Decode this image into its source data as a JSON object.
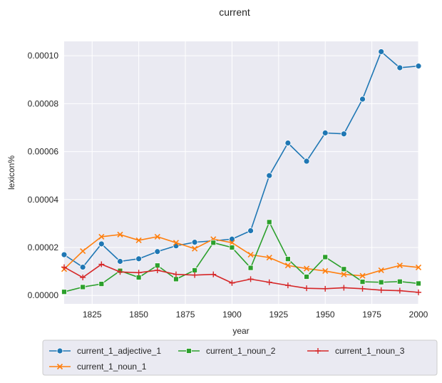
{
  "chart_data": {
    "type": "line",
    "title": "current",
    "xlabel": "year",
    "ylabel": "lexicon%",
    "xlim": [
      1810,
      2000
    ],
    "ylim": [
      -3.5e-06,
      0.000106
    ],
    "x_ticks": [
      1825,
      1850,
      1875,
      1900,
      1925,
      1950,
      1975,
      2000
    ],
    "y_ticks": [
      0.0,
      2e-05,
      4e-05,
      6e-05,
      8e-05,
      0.0001
    ],
    "y_tick_labels": [
      "0.00000",
      "0.00002",
      "0.00004",
      "0.00006",
      "0.00008",
      "0.00010"
    ],
    "grid": true,
    "legend_placement": "below plot, 3 columns",
    "x": [
      1810,
      1820,
      1830,
      1840,
      1850,
      1860,
      1870,
      1880,
      1890,
      1900,
      1910,
      1920,
      1930,
      1940,
      1950,
      1960,
      1970,
      1980,
      1990,
      2000
    ],
    "series": [
      {
        "name": "current_1_adjective_1",
        "color": "#1f77b4",
        "marker": "circle",
        "values": [
          1.7e-05,
          1.18e-05,
          2.15e-05,
          1.42e-05,
          1.53e-05,
          1.83e-05,
          2.07e-05,
          2.22e-05,
          2.28e-05,
          2.35e-05,
          2.7e-05,
          5e-05,
          6.36e-05,
          5.6e-05,
          6.78e-05,
          6.74e-05,
          8.19e-05,
          0.0001017,
          9.5e-05,
          9.57e-05
        ]
      },
      {
        "name": "current_1_noun_1",
        "color": "#ff7f0e",
        "marker": "x",
        "values": [
          1.1e-05,
          1.85e-05,
          2.45e-05,
          2.54e-05,
          2.3e-05,
          2.45e-05,
          2.2e-05,
          1.95e-05,
          2.35e-05,
          2.2e-05,
          1.7e-05,
          1.58e-05,
          1.25e-05,
          1.12e-05,
          1.02e-05,
          8.8e-06,
          8.2e-06,
          1.05e-05,
          1.25e-05,
          1.17e-05
        ]
      },
      {
        "name": "current_1_noun_2",
        "color": "#2ca02c",
        "marker": "square",
        "values": [
          1.5e-06,
          3.5e-06,
          4.8e-06,
          1.03e-05,
          7.5e-06,
          1.25e-05,
          6.8e-06,
          1.05e-05,
          2.2e-05,
          2e-05,
          1.15e-05,
          3.06e-05,
          1.52e-05,
          7.8e-06,
          1.6e-05,
          1.1e-05,
          5.7e-06,
          5.5e-06,
          5.8e-06,
          5e-06
        ]
      },
      {
        "name": "current_1_noun_3",
        "color": "#d62728",
        "marker": "plus",
        "values": [
          1.18e-05,
          7.5e-06,
          1.3e-05,
          9.8e-06,
          9.5e-06,
          1.05e-05,
          8.8e-06,
          8.5e-06,
          8.8e-06,
          5.2e-06,
          6.8e-06,
          5.5e-06,
          4.2e-06,
          3e-06,
          2.8e-06,
          3.2e-06,
          2.8e-06,
          2.2e-06,
          2e-06,
          1.3e-06
        ]
      }
    ]
  }
}
